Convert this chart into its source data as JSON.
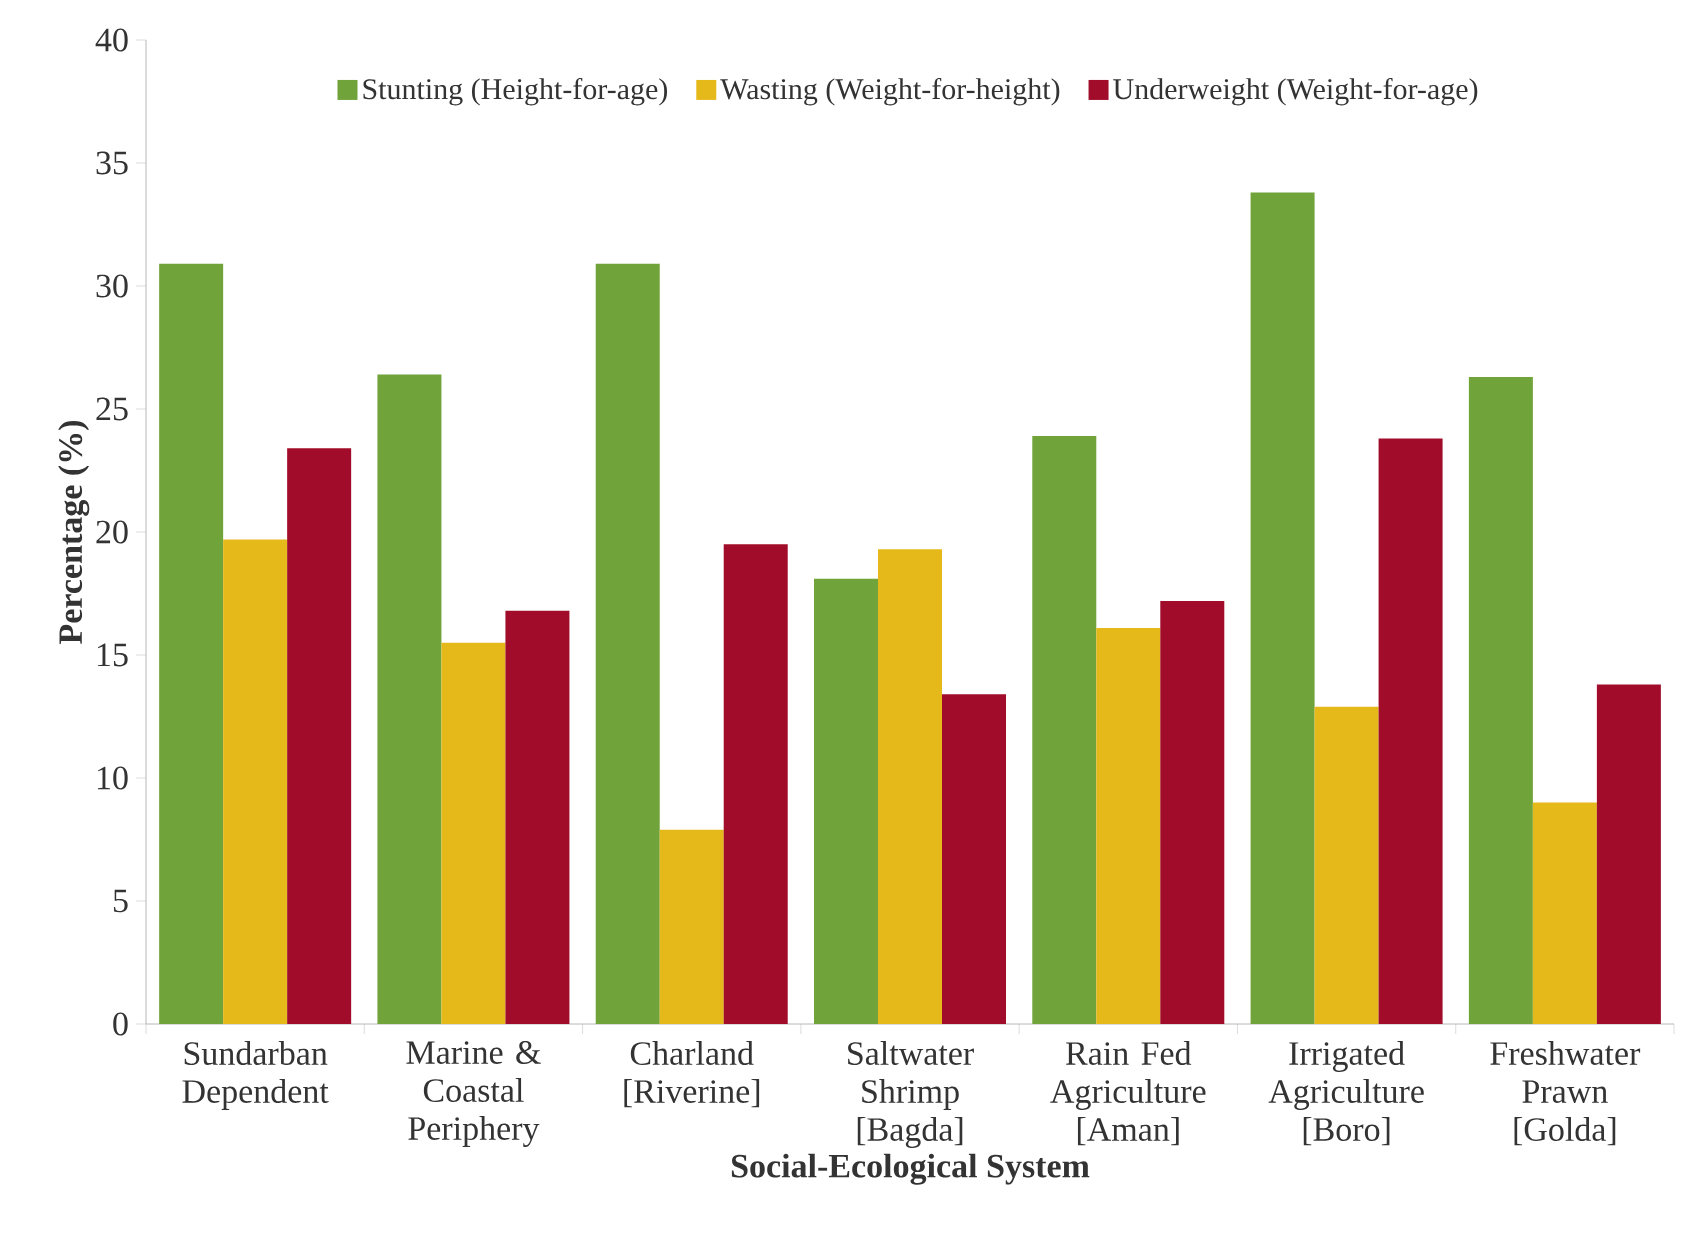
{
  "chart_data": {
    "type": "bar",
    "xlabel": "Social-Ecological System",
    "ylabel": "Percentage (%)",
    "categories": [
      "Sundarban Dependent",
      "Marine & Coastal Periphery",
      "Charland [Riverine]",
      "Saltwater Shrimp [Bagda]",
      "Rain Fed Agriculture [Aman]",
      "Irrigated Agriculture [Boro]",
      "Freshwater Prawn [Golda]"
    ],
    "series": [
      {
        "name": "Stunting (Height-for-age)",
        "color": "#70a33a",
        "values": [
          30.9,
          26.4,
          30.9,
          18.1,
          23.9,
          33.8,
          26.3
        ]
      },
      {
        "name": "Wasting (Weight-for-height)",
        "color": "#e6b91b",
        "values": [
          19.7,
          15.5,
          7.9,
          19.3,
          16.1,
          12.9,
          9.0
        ]
      },
      {
        "name": "Underweight (Weight-for-age)",
        "color": "#a00c2a",
        "values": [
          23.4,
          16.8,
          19.5,
          13.4,
          17.2,
          23.8,
          13.8
        ]
      }
    ],
    "ylim": [
      0,
      40
    ],
    "yticks": [
      0,
      5,
      10,
      15,
      20,
      25,
      30,
      35,
      40
    ],
    "grid": false,
    "legend": "top"
  }
}
